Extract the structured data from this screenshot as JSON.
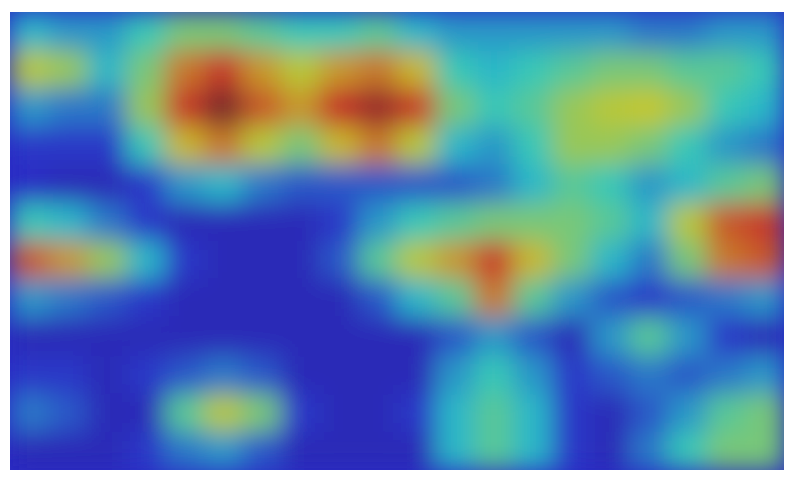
{
  "chart_data": {
    "type": "heatmap",
    "tick_labels": false,
    "zlim": [
      0,
      1
    ],
    "cells": [
      [
        0.35,
        0.3,
        0.3,
        0.4,
        0.5,
        0.5,
        0.45,
        0.4,
        0.4,
        0.45,
        0.35,
        0.3,
        0.3,
        0.3,
        0.3,
        0.3,
        0.25,
        0.25,
        0.3,
        0.3
      ],
      [
        0.6,
        0.55,
        0.35,
        0.5,
        0.75,
        0.85,
        0.7,
        0.6,
        0.7,
        0.75,
        0.65,
        0.4,
        0.35,
        0.4,
        0.45,
        0.5,
        0.5,
        0.45,
        0.45,
        0.4
      ],
      [
        0.3,
        0.25,
        0.25,
        0.55,
        0.85,
        1.0,
        0.8,
        0.7,
        0.88,
        0.95,
        0.85,
        0.5,
        0.4,
        0.45,
        0.55,
        0.6,
        0.62,
        0.55,
        0.4,
        0.35
      ],
      [
        0.15,
        0.15,
        0.15,
        0.4,
        0.65,
        0.75,
        0.6,
        0.5,
        0.65,
        0.75,
        0.6,
        0.35,
        0.3,
        0.4,
        0.55,
        0.55,
        0.5,
        0.4,
        0.3,
        0.25
      ],
      [
        0.12,
        0.1,
        0.1,
        0.15,
        0.3,
        0.35,
        0.25,
        0.2,
        0.2,
        0.2,
        0.2,
        0.2,
        0.25,
        0.35,
        0.45,
        0.4,
        0.3,
        0.35,
        0.45,
        0.5
      ],
      [
        0.4,
        0.35,
        0.25,
        0.15,
        0.1,
        0.1,
        0.1,
        0.1,
        0.15,
        0.3,
        0.4,
        0.45,
        0.5,
        0.5,
        0.5,
        0.45,
        0.35,
        0.6,
        0.8,
        0.85
      ],
      [
        0.8,
        0.7,
        0.55,
        0.35,
        0.15,
        0.1,
        0.1,
        0.1,
        0.2,
        0.45,
        0.6,
        0.7,
        0.85,
        0.65,
        0.5,
        0.35,
        0.25,
        0.5,
        0.75,
        0.8
      ],
      [
        0.3,
        0.25,
        0.2,
        0.15,
        0.1,
        0.1,
        0.1,
        0.1,
        0.1,
        0.2,
        0.35,
        0.45,
        0.75,
        0.45,
        0.3,
        0.2,
        0.15,
        0.2,
        0.25,
        0.3
      ],
      [
        0.1,
        0.1,
        0.1,
        0.1,
        0.1,
        0.1,
        0.1,
        0.1,
        0.1,
        0.1,
        0.1,
        0.2,
        0.3,
        0.2,
        0.1,
        0.3,
        0.45,
        0.3,
        0.15,
        0.1
      ],
      [
        0.15,
        0.15,
        0.1,
        0.15,
        0.2,
        0.25,
        0.2,
        0.1,
        0.1,
        0.1,
        0.1,
        0.3,
        0.4,
        0.3,
        0.15,
        0.2,
        0.25,
        0.2,
        0.25,
        0.3
      ],
      [
        0.25,
        0.2,
        0.1,
        0.1,
        0.45,
        0.6,
        0.5,
        0.15,
        0.1,
        0.1,
        0.15,
        0.35,
        0.45,
        0.35,
        0.15,
        0.1,
        0.2,
        0.3,
        0.45,
        0.5
      ],
      [
        0.1,
        0.1,
        0.1,
        0.15,
        0.25,
        0.3,
        0.2,
        0.1,
        0.1,
        0.1,
        0.1,
        0.35,
        0.45,
        0.35,
        0.15,
        0.1,
        0.25,
        0.4,
        0.5,
        0.5
      ]
    ]
  }
}
